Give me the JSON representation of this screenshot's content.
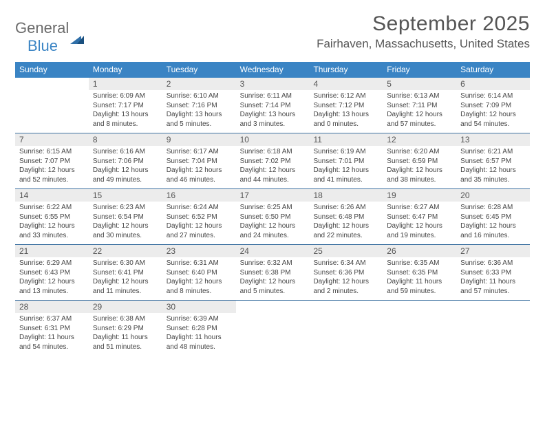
{
  "logo": {
    "text1": "General",
    "text2": "Blue"
  },
  "title": "September 2025",
  "location": "Fairhaven, Massachusetts, United States",
  "colors": {
    "header_bg": "#3a84c4",
    "header_text": "#ffffff",
    "daynum_bg": "#ececec",
    "daynum_text": "#555555",
    "body_text": "#444444",
    "rule": "#3a6fa0",
    "title_text": "#555555",
    "logo_gray": "#6b6b6b",
    "logo_blue": "#3a84c4"
  },
  "days_of_week": [
    "Sunday",
    "Monday",
    "Tuesday",
    "Wednesday",
    "Thursday",
    "Friday",
    "Saturday"
  ],
  "weeks": [
    [
      {
        "n": "",
        "sr": "",
        "ss": "",
        "dl": ""
      },
      {
        "n": "1",
        "sr": "Sunrise: 6:09 AM",
        "ss": "Sunset: 7:17 PM",
        "dl": "Daylight: 13 hours and 8 minutes."
      },
      {
        "n": "2",
        "sr": "Sunrise: 6:10 AM",
        "ss": "Sunset: 7:16 PM",
        "dl": "Daylight: 13 hours and 5 minutes."
      },
      {
        "n": "3",
        "sr": "Sunrise: 6:11 AM",
        "ss": "Sunset: 7:14 PM",
        "dl": "Daylight: 13 hours and 3 minutes."
      },
      {
        "n": "4",
        "sr": "Sunrise: 6:12 AM",
        "ss": "Sunset: 7:12 PM",
        "dl": "Daylight: 13 hours and 0 minutes."
      },
      {
        "n": "5",
        "sr": "Sunrise: 6:13 AM",
        "ss": "Sunset: 7:11 PM",
        "dl": "Daylight: 12 hours and 57 minutes."
      },
      {
        "n": "6",
        "sr": "Sunrise: 6:14 AM",
        "ss": "Sunset: 7:09 PM",
        "dl": "Daylight: 12 hours and 54 minutes."
      }
    ],
    [
      {
        "n": "7",
        "sr": "Sunrise: 6:15 AM",
        "ss": "Sunset: 7:07 PM",
        "dl": "Daylight: 12 hours and 52 minutes."
      },
      {
        "n": "8",
        "sr": "Sunrise: 6:16 AM",
        "ss": "Sunset: 7:06 PM",
        "dl": "Daylight: 12 hours and 49 minutes."
      },
      {
        "n": "9",
        "sr": "Sunrise: 6:17 AM",
        "ss": "Sunset: 7:04 PM",
        "dl": "Daylight: 12 hours and 46 minutes."
      },
      {
        "n": "10",
        "sr": "Sunrise: 6:18 AM",
        "ss": "Sunset: 7:02 PM",
        "dl": "Daylight: 12 hours and 44 minutes."
      },
      {
        "n": "11",
        "sr": "Sunrise: 6:19 AM",
        "ss": "Sunset: 7:01 PM",
        "dl": "Daylight: 12 hours and 41 minutes."
      },
      {
        "n": "12",
        "sr": "Sunrise: 6:20 AM",
        "ss": "Sunset: 6:59 PM",
        "dl": "Daylight: 12 hours and 38 minutes."
      },
      {
        "n": "13",
        "sr": "Sunrise: 6:21 AM",
        "ss": "Sunset: 6:57 PM",
        "dl": "Daylight: 12 hours and 35 minutes."
      }
    ],
    [
      {
        "n": "14",
        "sr": "Sunrise: 6:22 AM",
        "ss": "Sunset: 6:55 PM",
        "dl": "Daylight: 12 hours and 33 minutes."
      },
      {
        "n": "15",
        "sr": "Sunrise: 6:23 AM",
        "ss": "Sunset: 6:54 PM",
        "dl": "Daylight: 12 hours and 30 minutes."
      },
      {
        "n": "16",
        "sr": "Sunrise: 6:24 AM",
        "ss": "Sunset: 6:52 PM",
        "dl": "Daylight: 12 hours and 27 minutes."
      },
      {
        "n": "17",
        "sr": "Sunrise: 6:25 AM",
        "ss": "Sunset: 6:50 PM",
        "dl": "Daylight: 12 hours and 24 minutes."
      },
      {
        "n": "18",
        "sr": "Sunrise: 6:26 AM",
        "ss": "Sunset: 6:48 PM",
        "dl": "Daylight: 12 hours and 22 minutes."
      },
      {
        "n": "19",
        "sr": "Sunrise: 6:27 AM",
        "ss": "Sunset: 6:47 PM",
        "dl": "Daylight: 12 hours and 19 minutes."
      },
      {
        "n": "20",
        "sr": "Sunrise: 6:28 AM",
        "ss": "Sunset: 6:45 PM",
        "dl": "Daylight: 12 hours and 16 minutes."
      }
    ],
    [
      {
        "n": "21",
        "sr": "Sunrise: 6:29 AM",
        "ss": "Sunset: 6:43 PM",
        "dl": "Daylight: 12 hours and 13 minutes."
      },
      {
        "n": "22",
        "sr": "Sunrise: 6:30 AM",
        "ss": "Sunset: 6:41 PM",
        "dl": "Daylight: 12 hours and 11 minutes."
      },
      {
        "n": "23",
        "sr": "Sunrise: 6:31 AM",
        "ss": "Sunset: 6:40 PM",
        "dl": "Daylight: 12 hours and 8 minutes."
      },
      {
        "n": "24",
        "sr": "Sunrise: 6:32 AM",
        "ss": "Sunset: 6:38 PM",
        "dl": "Daylight: 12 hours and 5 minutes."
      },
      {
        "n": "25",
        "sr": "Sunrise: 6:34 AM",
        "ss": "Sunset: 6:36 PM",
        "dl": "Daylight: 12 hours and 2 minutes."
      },
      {
        "n": "26",
        "sr": "Sunrise: 6:35 AM",
        "ss": "Sunset: 6:35 PM",
        "dl": "Daylight: 11 hours and 59 minutes."
      },
      {
        "n": "27",
        "sr": "Sunrise: 6:36 AM",
        "ss": "Sunset: 6:33 PM",
        "dl": "Daylight: 11 hours and 57 minutes."
      }
    ],
    [
      {
        "n": "28",
        "sr": "Sunrise: 6:37 AM",
        "ss": "Sunset: 6:31 PM",
        "dl": "Daylight: 11 hours and 54 minutes."
      },
      {
        "n": "29",
        "sr": "Sunrise: 6:38 AM",
        "ss": "Sunset: 6:29 PM",
        "dl": "Daylight: 11 hours and 51 minutes."
      },
      {
        "n": "30",
        "sr": "Sunrise: 6:39 AM",
        "ss": "Sunset: 6:28 PM",
        "dl": "Daylight: 11 hours and 48 minutes."
      },
      {
        "n": "",
        "sr": "",
        "ss": "",
        "dl": ""
      },
      {
        "n": "",
        "sr": "",
        "ss": "",
        "dl": ""
      },
      {
        "n": "",
        "sr": "",
        "ss": "",
        "dl": ""
      },
      {
        "n": "",
        "sr": "",
        "ss": "",
        "dl": ""
      }
    ]
  ]
}
